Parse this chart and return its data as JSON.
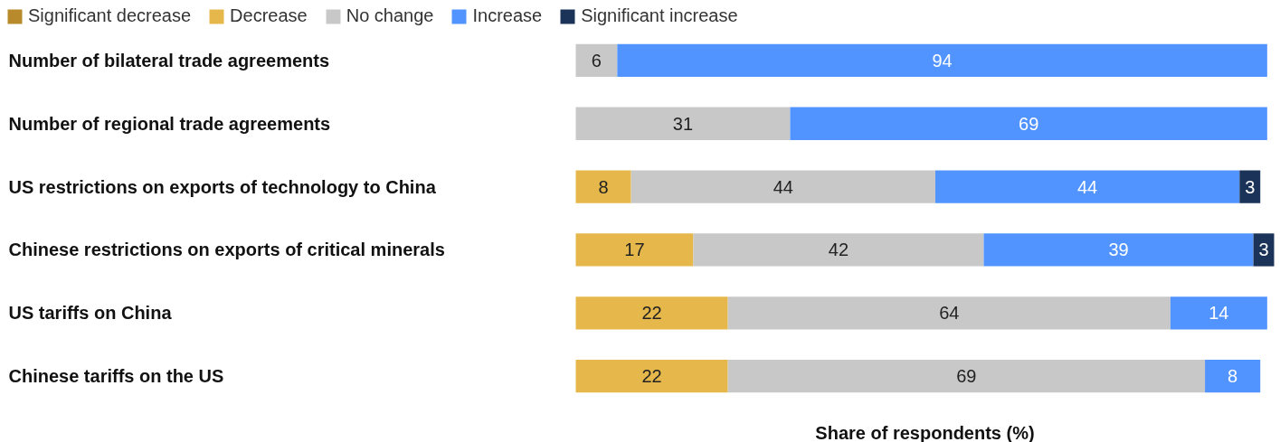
{
  "chart_data": {
    "type": "bar",
    "orientation": "horizontal",
    "stacked": true,
    "xlabel": "Share of respondents (%)",
    "categories": [
      "Number of bilateral trade agreements",
      "Number of regional trade agreements",
      "US restrictions on exports of technology to China",
      "Chinese restrictions on exports of critical minerals",
      "US tariffs on China",
      "Chinese tariffs on the US"
    ],
    "series": [
      {
        "name": "Significant decrease",
        "color": "#b98a2b",
        "values": [
          null,
          null,
          null,
          null,
          null,
          null
        ]
      },
      {
        "name": "Decrease",
        "color": "#e6b84b",
        "values": [
          null,
          null,
          8,
          17,
          22,
          22
        ]
      },
      {
        "name": "No change",
        "color": "#c8c8c8",
        "values": [
          6,
          31,
          44,
          42,
          64,
          69
        ]
      },
      {
        "name": "Increase",
        "color": "#5294ff",
        "values": [
          94,
          69,
          44,
          39,
          14,
          8
        ]
      },
      {
        "name": "Significant increase",
        "color": "#1b3259",
        "values": [
          null,
          null,
          3,
          3,
          null,
          null
        ]
      }
    ],
    "data_labels": true,
    "legend": "top left",
    "grid": false
  }
}
